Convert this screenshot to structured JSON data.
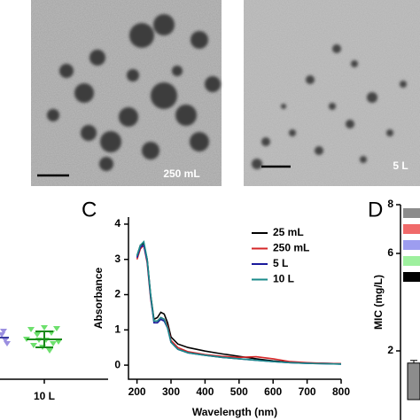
{
  "images": [
    {
      "label": "250 mL"
    },
    {
      "label": "5 L"
    }
  ],
  "chart_data": [
    {
      "type": "strip",
      "categories": [
        "10 L"
      ]
    },
    {
      "type": "line",
      "panel_label": "C",
      "x_label": "Wavelength (nm)",
      "y_label": "Absorbance",
      "x": [
        200,
        210,
        220,
        230,
        240,
        250,
        260,
        270,
        280,
        290,
        300,
        320,
        350,
        400,
        450,
        500,
        550,
        600,
        650,
        700,
        750,
        800
      ],
      "series": [
        {
          "name": "25 mL",
          "color": "#000000",
          "values": [
            3.1,
            3.4,
            3.45,
            3.0,
            2.0,
            1.3,
            1.35,
            1.5,
            1.45,
            1.2,
            0.8,
            0.6,
            0.5,
            0.4,
            0.32,
            0.25,
            0.18,
            0.12,
            0.08,
            0.06,
            0.05,
            0.04
          ]
        },
        {
          "name": "250 mL",
          "color": "#d62728",
          "values": [
            3.0,
            3.3,
            3.4,
            2.9,
            1.9,
            1.25,
            1.25,
            1.35,
            1.3,
            1.1,
            0.7,
            0.5,
            0.38,
            0.3,
            0.25,
            0.22,
            0.24,
            0.18,
            0.1,
            0.07,
            0.05,
            0.04
          ]
        },
        {
          "name": "5 L",
          "color": "#1a1a9c",
          "values": [
            3.05,
            3.35,
            3.4,
            2.95,
            1.95,
            1.2,
            1.2,
            1.3,
            1.25,
            1.05,
            0.65,
            0.45,
            0.35,
            0.28,
            0.22,
            0.18,
            0.14,
            0.1,
            0.07,
            0.05,
            0.04,
            0.03
          ]
        },
        {
          "name": "10 L",
          "color": "#1a8a8a",
          "values": [
            3.1,
            3.4,
            3.5,
            3.0,
            2.0,
            1.25,
            1.25,
            1.35,
            1.3,
            1.05,
            0.65,
            0.45,
            0.35,
            0.28,
            0.22,
            0.18,
            0.14,
            0.1,
            0.07,
            0.05,
            0.04,
            0.03
          ]
        }
      ],
      "xlim": [
        175,
        800
      ],
      "xticks": [
        200,
        300,
        400,
        500,
        600,
        700,
        800
      ],
      "ylim": [
        -0.4,
        4.2
      ],
      "yticks": [
        0,
        1,
        2,
        3,
        4
      ]
    },
    {
      "type": "bar",
      "panel_label": "D",
      "y_label": "MIC (mg/L)",
      "categories": [
        null
      ],
      "values": [
        1.5
      ],
      "color": "#8c8c8c",
      "ylim": [
        0,
        8
      ],
      "yticks": [
        2,
        6,
        8
      ]
    }
  ]
}
